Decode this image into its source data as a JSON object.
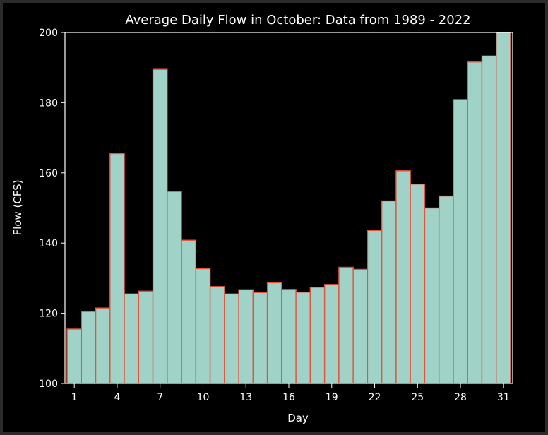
{
  "chart_data": {
    "type": "bar",
    "title": "Average Daily Flow in October: Data from 1989 - 2022",
    "xlabel": "Day",
    "ylabel": "Flow (CFS)",
    "ylim": [
      100,
      200
    ],
    "xlim": [
      0.35,
      31.65
    ],
    "xticks": [
      1,
      4,
      7,
      10,
      13,
      16,
      19,
      22,
      25,
      28,
      31
    ],
    "yticks": [
      100,
      120,
      140,
      160,
      180,
      200
    ],
    "grid": false,
    "categories": [
      1,
      2,
      3,
      4,
      5,
      6,
      7,
      8,
      9,
      10,
      11,
      12,
      13,
      14,
      15,
      16,
      17,
      18,
      19,
      20,
      21,
      22,
      23,
      24,
      25,
      26,
      27,
      28,
      29,
      30,
      31
    ],
    "values": [
      115.5,
      120.5,
      121.5,
      165.5,
      125.5,
      126.3,
      189.5,
      154.7,
      140.8,
      132.7,
      127.6,
      125.5,
      126.7,
      125.9,
      128.7,
      126.8,
      126.0,
      127.4,
      128.2,
      133.1,
      132.5,
      143.6,
      152.0,
      160.6,
      156.8,
      150.0,
      153.4,
      180.9,
      191.6,
      193.3,
      206.0
    ],
    "colors": {
      "bar_fill": "#a1d2c8",
      "bar_edge": "#e4523b",
      "axis": "#ffffff",
      "background": "#000000"
    }
  }
}
